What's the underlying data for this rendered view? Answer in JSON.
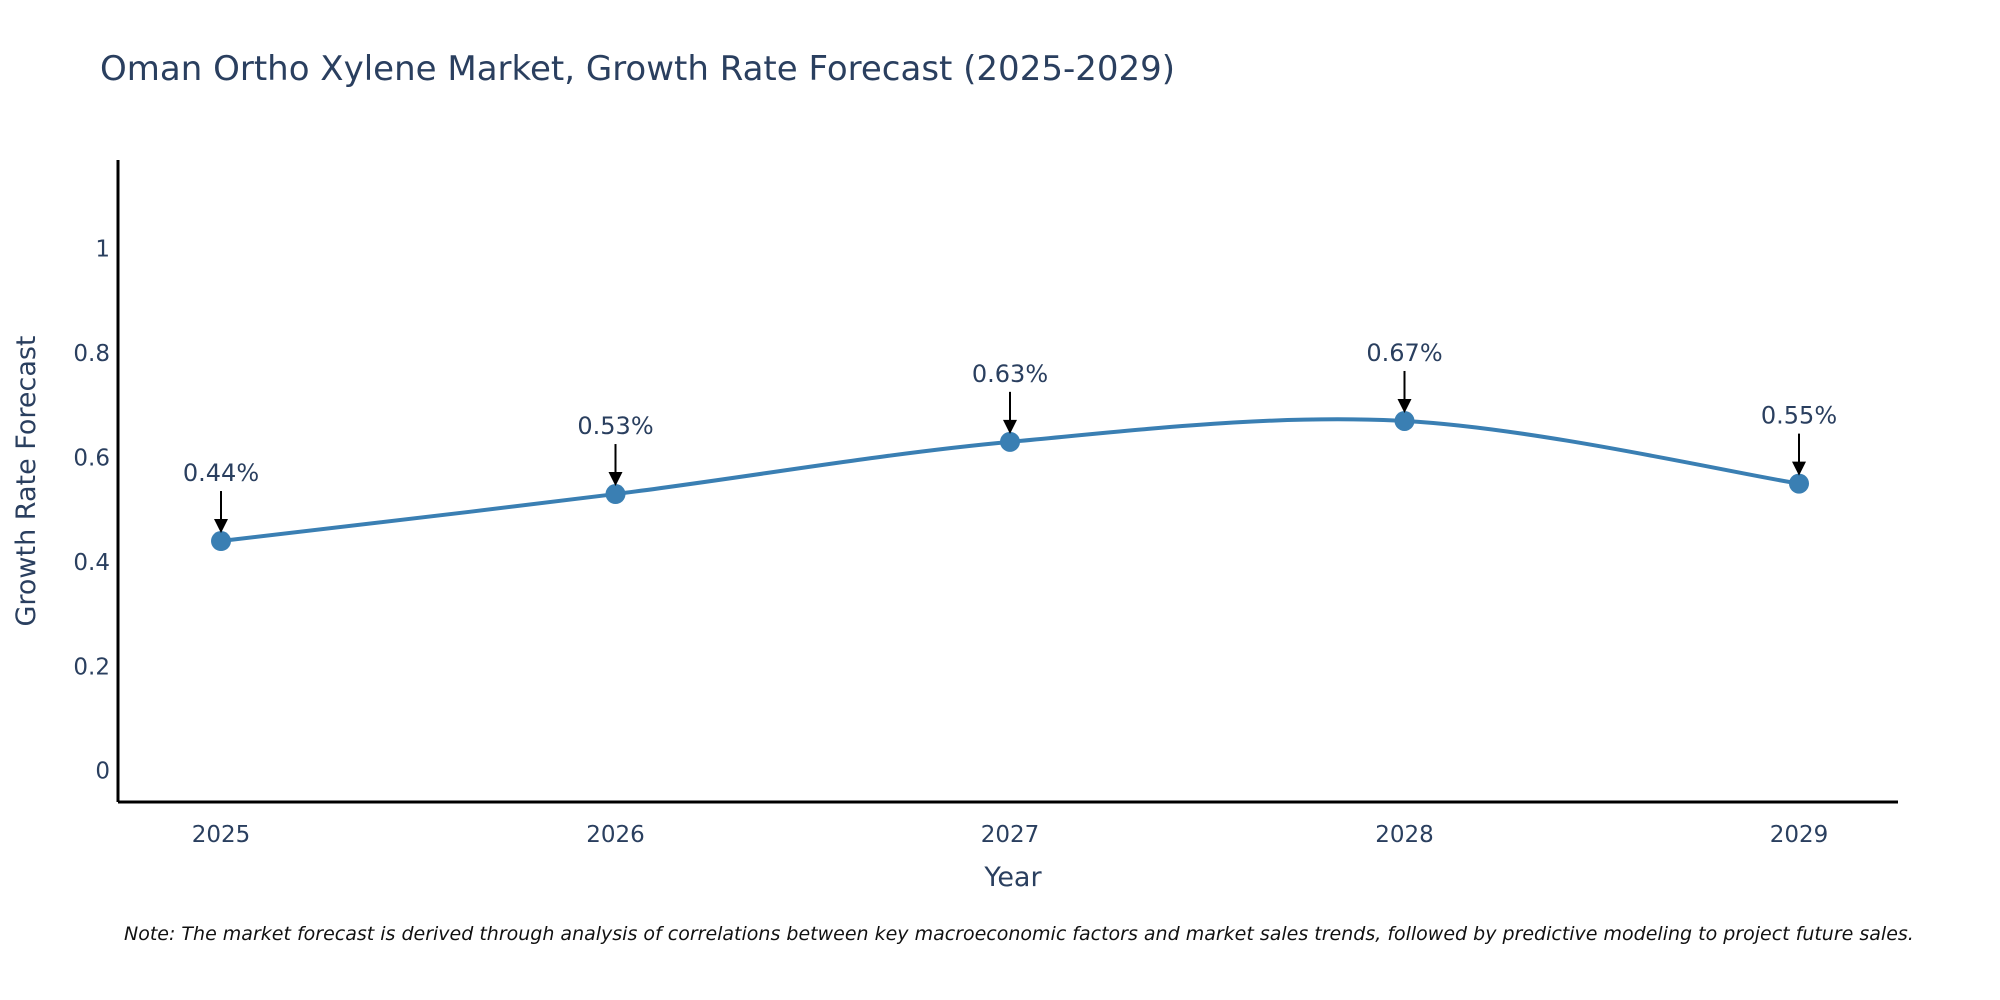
{
  "colors": {
    "series": "#3a7fb3",
    "text": "#2a3f5f",
    "axis": "#000000",
    "annotation_arrow": "#000000"
  },
  "chart_data": {
    "type": "line",
    "title": "Oman Ortho Xylene Market, Growth Rate Forecast (2025-2029)",
    "xlabel": "Year",
    "ylabel": "Growth Rate Forecast",
    "categories": [
      "2025",
      "2026",
      "2027",
      "2028",
      "2029"
    ],
    "series": [
      {
        "name": "Growth Rate Forecast",
        "values": [
          0.44,
          0.53,
          0.63,
          0.67,
          0.55
        ],
        "labels": [
          "0.44%",
          "0.53%",
          "0.63%",
          "0.67%",
          "0.55%"
        ]
      }
    ],
    "ylim": [
      -0.06,
      1.17
    ],
    "yticks": [
      0,
      0.2,
      0.4,
      0.6,
      0.8,
      1
    ],
    "ytick_labels": [
      "0",
      "0.2",
      "0.4",
      "0.6",
      "0.8",
      "1"
    ],
    "grid": false,
    "line_shape": "spline",
    "note": "Note: The market forecast is derived through analysis of correlations between key macroeconomic factors and market sales trends, followed by predictive modeling to project future sales."
  }
}
